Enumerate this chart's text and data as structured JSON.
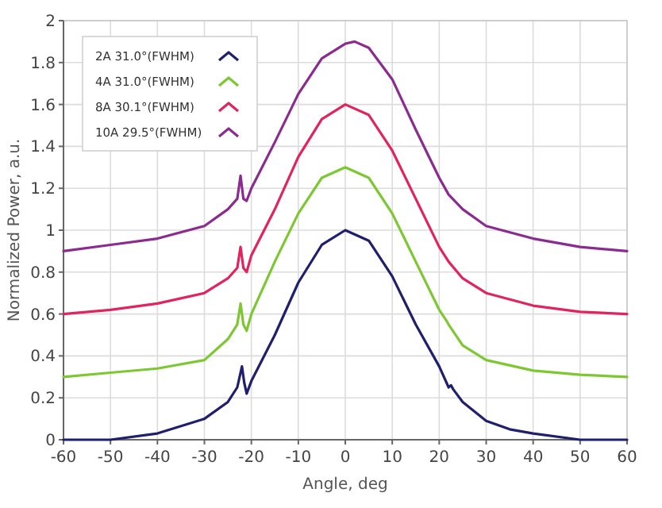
{
  "chart_data": {
    "type": "line",
    "xlabel": "Angle, deg",
    "ylabel": "Normalized Power, a.u.",
    "xlim": [
      -60,
      60
    ],
    "xticks": [
      -60,
      -50,
      -40,
      -30,
      -20,
      -10,
      0,
      10,
      20,
      30,
      40,
      50,
      60
    ],
    "ylim": [
      0,
      2
    ],
    "yticks": [
      0,
      0.2,
      0.4,
      0.6,
      0.8,
      1,
      1.2,
      1.4,
      1.6,
      1.8,
      2
    ],
    "grid": true,
    "legend": "top left",
    "marker": "none",
    "line_style": "solid",
    "series": [
      {
        "name": "2A 31.0°(FWHM)",
        "color": "#1f1f6e",
        "x": [
          -60,
          -50,
          -40,
          -30,
          -25,
          -23,
          -22,
          -21.5,
          -21,
          -20,
          -15,
          -10,
          -5,
          0,
          5,
          10,
          15,
          20,
          22,
          22.5,
          23,
          25,
          30,
          35,
          40,
          50,
          60
        ],
        "values": [
          0,
          0,
          0.03,
          0.1,
          0.18,
          0.25,
          0.35,
          0.27,
          0.22,
          0.28,
          0.5,
          0.75,
          0.93,
          1,
          0.95,
          0.78,
          0.55,
          0.35,
          0.25,
          0.26,
          0.24,
          0.18,
          0.09,
          0.05,
          0.03,
          0,
          0
        ]
      },
      {
        "name": "4A 31.0°(FWHM)",
        "color": "#7dc832",
        "x": [
          -60,
          -50,
          -40,
          -30,
          -25,
          -23,
          -22.3,
          -21.7,
          -21,
          -20,
          -15,
          -10,
          -5,
          0,
          5,
          10,
          15,
          20,
          21.5,
          22,
          25,
          30,
          40,
          50,
          60
        ],
        "values": [
          0.3,
          0.32,
          0.34,
          0.38,
          0.48,
          0.55,
          0.65,
          0.55,
          0.52,
          0.6,
          0.85,
          1.08,
          1.25,
          1.3,
          1.25,
          1.08,
          0.85,
          0.62,
          0.57,
          0.55,
          0.45,
          0.38,
          0.33,
          0.31,
          0.3
        ]
      },
      {
        "name": "8A 30.1°(FWHM)",
        "color": "#e0245e",
        "x": [
          -60,
          -50,
          -40,
          -30,
          -25,
          -23,
          -22.3,
          -21.7,
          -21,
          -20,
          -15,
          -10,
          -5,
          0,
          5,
          10,
          15,
          20,
          22,
          25,
          30,
          40,
          50,
          60
        ],
        "values": [
          0.6,
          0.62,
          0.65,
          0.7,
          0.77,
          0.82,
          0.92,
          0.82,
          0.8,
          0.88,
          1.1,
          1.35,
          1.53,
          1.6,
          1.55,
          1.38,
          1.15,
          0.92,
          0.85,
          0.77,
          0.7,
          0.64,
          0.61,
          0.6
        ]
      },
      {
        "name": "10A 29.5°(FWHM)",
        "color": "#8b2a8f",
        "x": [
          -60,
          -50,
          -40,
          -30,
          -25,
          -23,
          -22.3,
          -21.7,
          -21,
          -20,
          -15,
          -10,
          -5,
          0,
          2,
          5,
          10,
          15,
          20,
          22,
          25,
          30,
          40,
          50,
          60
        ],
        "values": [
          0.9,
          0.93,
          0.96,
          1.02,
          1.1,
          1.15,
          1.26,
          1.15,
          1.14,
          1.2,
          1.42,
          1.65,
          1.82,
          1.89,
          1.9,
          1.87,
          1.72,
          1.48,
          1.25,
          1.17,
          1.1,
          1.02,
          0.96,
          0.92,
          0.9
        ]
      }
    ]
  }
}
